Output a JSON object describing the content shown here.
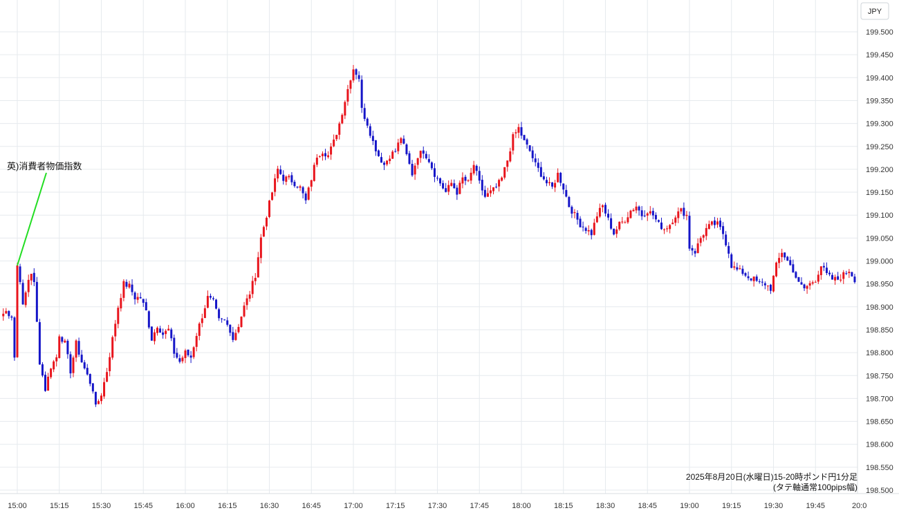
{
  "chart_data": {
    "type": "candlestick",
    "title": "2025年8月20日(水曜日)15-20時ポンド円1分足",
    "subtitle": "(タテ軸通常100pips幅)",
    "currency_label": "JPY",
    "annotation": {
      "text": "英)消費者物価指数",
      "time": "15:00",
      "price": 198.99
    },
    "ylim": [
      198.5,
      199.52
    ],
    "y_ticks": [
      "199.500",
      "199.450",
      "199.400",
      "199.350",
      "199.300",
      "199.250",
      "199.200",
      "199.150",
      "199.100",
      "199.050",
      "199.000",
      "198.950",
      "198.900",
      "198.850",
      "198.800",
      "198.750",
      "198.700",
      "198.650",
      "198.600",
      "198.550",
      "198.500"
    ],
    "x_ticks": [
      "15:00",
      "15:15",
      "15:30",
      "15:45",
      "16:00",
      "16:15",
      "16:30",
      "16:45",
      "17:00",
      "17:15",
      "17:30",
      "17:45",
      "18:00",
      "18:15",
      "18:30",
      "18:45",
      "19:00",
      "19:15",
      "19:30",
      "19:45",
      "20:0"
    ],
    "start_time": "14:54",
    "interval": "1min",
    "grid": true,
    "colors": {
      "up": "#e8141c",
      "down": "#1515c8",
      "annotation_line": "#22dd22",
      "grid": "#e6eaee"
    },
    "close_path": [
      [
        "14:54",
        198.88
      ],
      [
        "14:56",
        198.89
      ],
      [
        "14:58",
        198.88
      ],
      [
        "14:59",
        198.79
      ],
      [
        "15:00",
        198.99
      ],
      [
        "15:01",
        198.96
      ],
      [
        "15:02",
        198.9
      ],
      [
        "15:03",
        198.93
      ],
      [
        "15:04",
        198.96
      ],
      [
        "15:05",
        198.975
      ],
      [
        "15:06",
        198.95
      ],
      [
        "15:08",
        198.78
      ],
      [
        "15:10",
        198.72
      ],
      [
        "15:12",
        198.77
      ],
      [
        "15:14",
        198.79
      ],
      [
        "15:15",
        198.84
      ],
      [
        "15:17",
        198.82
      ],
      [
        "15:19",
        198.76
      ],
      [
        "15:21",
        198.82
      ],
      [
        "15:23",
        198.78
      ],
      [
        "15:25",
        198.75
      ],
      [
        "15:27",
        198.72
      ],
      [
        "15:28",
        198.68
      ],
      [
        "15:30",
        198.71
      ],
      [
        "15:32",
        198.76
      ],
      [
        "15:34",
        198.83
      ],
      [
        "15:36",
        198.9
      ],
      [
        "15:38",
        198.95
      ],
      [
        "15:40",
        198.945
      ],
      [
        "15:42",
        198.92
      ],
      [
        "15:44",
        198.92
      ],
      [
        "15:46",
        198.89
      ],
      [
        "15:48",
        198.83
      ],
      [
        "15:50",
        198.86
      ],
      [
        "15:52",
        198.84
      ],
      [
        "15:54",
        198.85
      ],
      [
        "15:56",
        198.8
      ],
      [
        "15:58",
        198.78
      ],
      [
        "16:00",
        198.8
      ],
      [
        "16:02",
        198.79
      ],
      [
        "16:04",
        198.84
      ],
      [
        "16:06",
        198.88
      ],
      [
        "16:08",
        198.92
      ],
      [
        "16:10",
        198.91
      ],
      [
        "16:12",
        198.87
      ],
      [
        "16:14",
        198.87
      ],
      [
        "16:16",
        198.85
      ],
      [
        "16:17",
        198.83
      ],
      [
        "16:19",
        198.86
      ],
      [
        "16:21",
        198.9
      ],
      [
        "16:23",
        198.93
      ],
      [
        "16:25",
        198.97
      ],
      [
        "16:27",
        199.05
      ],
      [
        "16:29",
        199.1
      ],
      [
        "16:31",
        199.15
      ],
      [
        "16:33",
        199.2
      ],
      [
        "16:35",
        199.18
      ],
      [
        "16:37",
        199.18
      ],
      [
        "16:39",
        199.17
      ],
      [
        "16:41",
        199.16
      ],
      [
        "16:43",
        199.13
      ],
      [
        "16:45",
        199.18
      ],
      [
        "16:47",
        199.23
      ],
      [
        "16:49",
        199.24
      ],
      [
        "16:51",
        199.23
      ],
      [
        "16:53",
        199.26
      ],
      [
        "16:55",
        199.3
      ],
      [
        "16:57",
        199.35
      ],
      [
        "16:59",
        199.4
      ],
      [
        "17:00",
        199.42
      ],
      [
        "17:02",
        199.4
      ],
      [
        "17:03",
        199.33
      ],
      [
        "17:05",
        199.3
      ],
      [
        "17:07",
        199.26
      ],
      [
        "17:09",
        199.23
      ],
      [
        "17:11",
        199.21
      ],
      [
        "17:13",
        199.23
      ],
      [
        "17:15",
        199.24
      ],
      [
        "17:17",
        199.27
      ],
      [
        "17:19",
        199.23
      ],
      [
        "17:21",
        199.19
      ],
      [
        "17:23",
        199.23
      ],
      [
        "17:25",
        199.24
      ],
      [
        "17:27",
        199.22
      ],
      [
        "17:29",
        199.19
      ],
      [
        "17:31",
        199.17
      ],
      [
        "17:33",
        199.15
      ],
      [
        "17:35",
        199.17
      ],
      [
        "17:37",
        199.15
      ],
      [
        "17:39",
        199.18
      ],
      [
        "17:41",
        199.17
      ],
      [
        "17:43",
        199.21
      ],
      [
        "17:45",
        199.17
      ],
      [
        "17:47",
        199.14
      ],
      [
        "17:49",
        199.15
      ],
      [
        "17:51",
        199.16
      ],
      [
        "17:53",
        199.18
      ],
      [
        "17:55",
        199.22
      ],
      [
        "17:57",
        199.27
      ],
      [
        "17:59",
        199.29
      ],
      [
        "18:01",
        199.26
      ],
      [
        "18:03",
        199.24
      ],
      [
        "18:05",
        199.21
      ],
      [
        "18:07",
        199.19
      ],
      [
        "18:09",
        199.17
      ],
      [
        "18:11",
        199.16
      ],
      [
        "18:13",
        199.19
      ],
      [
        "18:15",
        199.16
      ],
      [
        "18:17",
        199.12
      ],
      [
        "18:19",
        199.1
      ],
      [
        "18:21",
        199.08
      ],
      [
        "18:23",
        199.07
      ],
      [
        "18:25",
        199.06
      ],
      [
        "18:27",
        199.1
      ],
      [
        "18:29",
        199.12
      ],
      [
        "18:31",
        199.09
      ],
      [
        "18:33",
        199.06
      ],
      [
        "18:35",
        199.08
      ],
      [
        "18:37",
        199.09
      ],
      [
        "18:39",
        199.11
      ],
      [
        "18:41",
        199.12
      ],
      [
        "18:43",
        199.1
      ],
      [
        "18:45",
        199.11
      ],
      [
        "18:47",
        199.1
      ],
      [
        "18:49",
        199.08
      ],
      [
        "18:51",
        199.07
      ],
      [
        "18:53",
        199.08
      ],
      [
        "18:55",
        199.1
      ],
      [
        "18:57",
        199.11
      ],
      [
        "18:59",
        199.1
      ],
      [
        "19:00",
        199.03
      ],
      [
        "19:02",
        199.02
      ],
      [
        "19:04",
        199.05
      ],
      [
        "19:06",
        199.07
      ],
      [
        "19:08",
        199.08
      ],
      [
        "19:10",
        199.08
      ],
      [
        "19:12",
        199.06
      ],
      [
        "19:14",
        199.02
      ],
      [
        "19:15",
        198.99
      ],
      [
        "19:17",
        198.98
      ],
      [
        "19:19",
        198.975
      ],
      [
        "19:21",
        198.965
      ],
      [
        "19:23",
        198.96
      ],
      [
        "19:25",
        198.95
      ],
      [
        "19:27",
        198.95
      ],
      [
        "19:29",
        198.94
      ],
      [
        "19:31",
        198.99
      ],
      [
        "19:33",
        199.02
      ],
      [
        "19:35",
        199.0
      ],
      [
        "19:37",
        198.98
      ],
      [
        "19:39",
        198.95
      ],
      [
        "19:41",
        198.94
      ],
      [
        "19:43",
        198.95
      ],
      [
        "19:45",
        198.96
      ],
      [
        "19:47",
        198.99
      ],
      [
        "19:49",
        198.97
      ],
      [
        "19:51",
        198.96
      ],
      [
        "19:53",
        198.96
      ],
      [
        "19:55",
        198.97
      ],
      [
        "19:57",
        198.98
      ],
      [
        "19:59",
        198.96
      ],
      [
        "20:00",
        198.95
      ]
    ]
  }
}
